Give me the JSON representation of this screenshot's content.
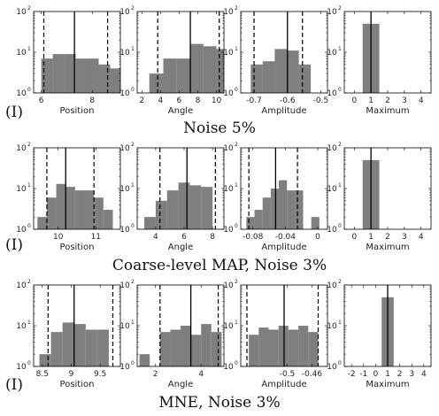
{
  "figure": {
    "rows": [
      {
        "marker": "(I)",
        "title": "Noise 5%",
        "panels": [
          {
            "xlabel": "Position",
            "xticks": [
              "6",
              "8"
            ]
          },
          {
            "xlabel": "Angle",
            "xticks": [
              "2",
              "4",
              "6",
              "8",
              "10"
            ]
          },
          {
            "xlabel": "Amplitude",
            "xticks": [
              "-0.7",
              "-0.6",
              "-0.5"
            ]
          },
          {
            "xlabel": "Maximum",
            "xticks": [
              "0",
              "1",
              "2",
              "3",
              "4"
            ]
          }
        ]
      },
      {
        "marker": "(I)",
        "title": "Coarse-level MAP, Noise 3%",
        "panels": [
          {
            "xlabel": "Position",
            "xticks": [
              "10",
              "11"
            ]
          },
          {
            "xlabel": "Angle",
            "xticks": [
              "4",
              "6",
              "8"
            ]
          },
          {
            "xlabel": "Amplitude",
            "xticks": [
              "-0.08",
              "-0.04",
              "0"
            ]
          },
          {
            "xlabel": "Maximum",
            "xticks": [
              "0",
              "1",
              "2",
              "3",
              "4"
            ]
          }
        ]
      },
      {
        "marker": "(I)",
        "title": "MNE, Noise 3%",
        "panels": [
          {
            "xlabel": "Position",
            "xticks": [
              "8.5",
              "9",
              "9.5"
            ]
          },
          {
            "xlabel": "Angle",
            "xticks": [
              "2",
              "4"
            ]
          },
          {
            "xlabel": "Amplitude",
            "xticks": [
              "-0.5",
              "-0.46"
            ]
          },
          {
            "xlabel": "Maximum",
            "xticks": [
              "-2",
              "-1",
              "0",
              "1",
              "2",
              "3",
              "4"
            ]
          }
        ]
      }
    ],
    "ytick_base": "10",
    "ytick_exponents": [
      "0",
      "1",
      "2"
    ]
  },
  "chart_data": [
    {
      "type": "bar",
      "row": "Noise 5%",
      "xlabel": "Position",
      "yscale": "log",
      "ylim": [
        1,
        100
      ],
      "xlim": [
        5.7,
        9.1
      ],
      "bins": [
        6.0,
        6.45,
        6.9,
        7.35,
        7.8,
        8.25,
        8.7,
        9.1
      ],
      "counts": [
        7,
        9,
        9,
        7,
        7,
        5,
        4
      ],
      "mean": 7.3,
      "lower": 6.1,
      "upper": 8.6,
      "xticks": [
        {
          "v": 6,
          "l": "6"
        },
        {
          "v": 8,
          "l": "8"
        }
      ]
    },
    {
      "type": "bar",
      "row": "Noise 5%",
      "xlabel": "Angle",
      "yscale": "log",
      "ylim": [
        1,
        100
      ],
      "xlim": [
        1.5,
        10.8
      ],
      "bins": [
        2.8,
        4.3,
        5.7,
        7.2,
        8.6,
        10.0,
        10.8
      ],
      "counts": [
        3,
        7,
        7,
        16,
        14,
        12
      ],
      "mean": 7.2,
      "lower": 3.7,
      "upper": 10.3,
      "xticks": [
        {
          "v": 2,
          "l": "2"
        },
        {
          "v": 4,
          "l": "4"
        },
        {
          "v": 6,
          "l": "6"
        },
        {
          "v": 8,
          "l": "8"
        },
        {
          "v": 10,
          "l": "10"
        }
      ]
    },
    {
      "type": "bar",
      "row": "Noise 5%",
      "xlabel": "Amplitude",
      "yscale": "log",
      "ylim": [
        1,
        100
      ],
      "xlim": [
        -0.74,
        -0.48
      ],
      "bins": [
        -0.71,
        -0.674,
        -0.638,
        -0.602,
        -0.566,
        -0.53
      ],
      "counts": [
        5,
        6,
        12,
        11,
        5
      ],
      "mean": -0.6,
      "lower": -0.7,
      "upper": -0.555,
      "xticks": [
        {
          "v": -0.7,
          "l": "-0.7"
        },
        {
          "v": -0.6,
          "l": "-0.6"
        },
        {
          "v": -0.5,
          "l": "-0.5"
        }
      ]
    },
    {
      "type": "bar",
      "row": "Noise 5%",
      "xlabel": "Maximum",
      "yscale": "log",
      "ylim": [
        1,
        100
      ],
      "xlim": [
        -0.6,
        4.6
      ],
      "bins": [
        0.5,
        1.5
      ],
      "counts": [
        50
      ],
      "mean": 1.0,
      "lower": null,
      "upper": null,
      "xticks": [
        {
          "v": 0,
          "l": "0"
        },
        {
          "v": 1,
          "l": "1"
        },
        {
          "v": 2,
          "l": "2"
        },
        {
          "v": 3,
          "l": "3"
        },
        {
          "v": 4,
          "l": "4"
        }
      ]
    },
    {
      "type": "bar",
      "row": "Coarse-level MAP, Noise 3%",
      "xlabel": "Position",
      "yscale": "log",
      "ylim": [
        1,
        100
      ],
      "xlim": [
        9.35,
        11.65
      ],
      "bins": [
        9.45,
        9.7,
        9.95,
        10.2,
        10.45,
        10.7,
        10.95,
        11.2,
        11.45
      ],
      "counts": [
        2,
        6,
        13,
        11,
        9,
        9,
        6,
        3
      ],
      "mean": 10.2,
      "lower": 9.7,
      "upper": 10.95,
      "xticks": [
        {
          "v": 10,
          "l": "10"
        },
        {
          "v": 11,
          "l": "11"
        }
      ]
    },
    {
      "type": "bar",
      "row": "Coarse-level MAP, Noise 3%",
      "xlabel": "Angle",
      "yscale": "log",
      "ylim": [
        1,
        100
      ],
      "xlim": [
        2.7,
        8.8
      ],
      "bins": [
        3.2,
        4.0,
        4.8,
        5.6,
        6.4,
        7.2,
        8.0
      ],
      "counts": [
        2,
        5,
        9,
        14,
        12,
        11
      ],
      "mean": 6.2,
      "lower": 4.3,
      "upper": 8.2,
      "xticks": [
        {
          "v": 4,
          "l": "4"
        },
        {
          "v": 6,
          "l": "6"
        },
        {
          "v": 8,
          "l": "8"
        }
      ]
    },
    {
      "type": "bar",
      "row": "Coarse-level MAP, Noise 3%",
      "xlabel": "Amplitude",
      "yscale": "log",
      "ylim": [
        1,
        100
      ],
      "xlim": [
        -0.095,
        0.012
      ],
      "bins": [
        -0.088,
        -0.078,
        -0.068,
        -0.058,
        -0.048,
        -0.038,
        -0.028,
        -0.018,
        -0.008,
        0.002
      ],
      "counts": [
        2,
        3,
        6,
        10,
        16,
        9,
        9,
        1,
        2
      ],
      "mean": -0.052,
      "lower": -0.085,
      "upper": -0.025,
      "xticks": [
        {
          "v": -0.08,
          "l": "-0.08"
        },
        {
          "v": -0.04,
          "l": "-0.04"
        },
        {
          "v": 0,
          "l": "0"
        }
      ]
    },
    {
      "type": "bar",
      "row": "Coarse-level MAP, Noise 3%",
      "xlabel": "Maximum",
      "yscale": "log",
      "ylim": [
        1,
        100
      ],
      "xlim": [
        -0.6,
        4.6
      ],
      "bins": [
        0.5,
        1.5
      ],
      "counts": [
        50
      ],
      "mean": 1.0,
      "lower": null,
      "upper": null,
      "xticks": [
        {
          "v": 0,
          "l": "0"
        },
        {
          "v": 1,
          "l": "1"
        },
        {
          "v": 2,
          "l": "2"
        },
        {
          "v": 3,
          "l": "3"
        },
        {
          "v": 4,
          "l": "4"
        }
      ]
    },
    {
      "type": "bar",
      "row": "MNE, Noise 3%",
      "xlabel": "Position",
      "yscale": "log",
      "ylim": [
        1,
        100
      ],
      "xlim": [
        8.35,
        9.85
      ],
      "bins": [
        8.45,
        8.65,
        8.85,
        9.05,
        9.25,
        9.45,
        9.65
      ],
      "counts": [
        2,
        7,
        12,
        11,
        8,
        8
      ],
      "mean": 9.05,
      "lower": 8.6,
      "upper": 9.72,
      "xticks": [
        {
          "v": 8.5,
          "l": "8.5"
        },
        {
          "v": 9,
          "l": "9"
        },
        {
          "v": 9.5,
          "l": "9.5"
        }
      ]
    },
    {
      "type": "bar",
      "row": "MNE, Noise 3%",
      "xlabel": "Angle",
      "yscale": "log",
      "ylim": [
        1,
        100
      ],
      "xlim": [
        1.2,
        5.0
      ],
      "bins": [
        1.3,
        1.75,
        2.2,
        2.65,
        3.1,
        3.55,
        4.0,
        4.45,
        4.9
      ],
      "counts": [
        2,
        0,
        7,
        8,
        10,
        6,
        11,
        7
      ],
      "mean": 3.55,
      "lower": 2.2,
      "upper": 4.75,
      "xticks": [
        {
          "v": 2,
          "l": "2"
        },
        {
          "v": 4,
          "l": "4"
        }
      ]
    },
    {
      "type": "bar",
      "row": "MNE, Noise 3%",
      "xlabel": "Amplitude",
      "yscale": "log",
      "ylim": [
        1,
        100
      ],
      "xlim": [
        -0.575,
        -0.435
      ],
      "bins": [
        -0.562,
        -0.546,
        -0.53,
        -0.514,
        -0.498,
        -0.482,
        -0.466,
        -0.45
      ],
      "counts": [
        6,
        9,
        8,
        10,
        8,
        10,
        7
      ],
      "mean": -0.505,
      "lower": -0.565,
      "upper": -0.45,
      "xticks": [
        {
          "v": -0.5,
          "l": "-0.5"
        },
        {
          "v": -0.46,
          "l": "-0.46"
        }
      ]
    },
    {
      "type": "bar",
      "row": "MNE, Noise 3%",
      "xlabel": "Maximum",
      "yscale": "log",
      "ylim": [
        1,
        100
      ],
      "xlim": [
        -2.6,
        4.6
      ],
      "bins": [
        0.5,
        1.5
      ],
      "counts": [
        50
      ],
      "mean": 1.0,
      "lower": null,
      "upper": null,
      "xticks": [
        {
          "v": -2,
          "l": "-2"
        },
        {
          "v": -1,
          "l": "-1"
        },
        {
          "v": 0,
          "l": "0"
        },
        {
          "v": 1,
          "l": "1"
        },
        {
          "v": 2,
          "l": "2"
        },
        {
          "v": 3,
          "l": "3"
        },
        {
          "v": 4,
          "l": "4"
        }
      ]
    }
  ]
}
